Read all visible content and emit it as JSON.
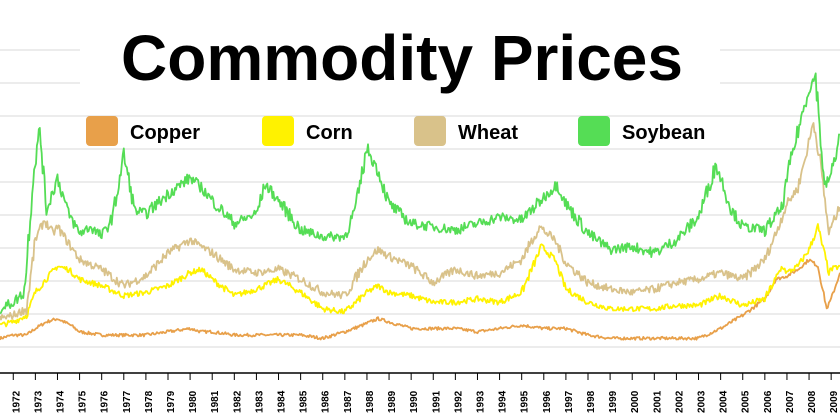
{
  "chart_data": {
    "type": "line",
    "title": "Commodity Prices",
    "xlabel": "",
    "ylabel": "",
    "xlim": [
      1971.4,
      2009.4
    ],
    "ylim": [
      0,
      100
    ],
    "grid": true,
    "legend_position": "top",
    "x_ticks": [
      "1972",
      "1973",
      "1974",
      "1975",
      "1976",
      "1977",
      "1978",
      "1979",
      "1980",
      "1981",
      "1982",
      "1983",
      "1984",
      "1985",
      "1986",
      "1987",
      "1988",
      "1989",
      "1990",
      "1991",
      "1992",
      "1993",
      "1994",
      "1995",
      "1996",
      "1997",
      "1998",
      "1999",
      "2000",
      "2001",
      "2002",
      "2003",
      "2004",
      "2005",
      "2006",
      "2007",
      "2008",
      "2009"
    ],
    "series": [
      {
        "name": "Copper",
        "color": "#E8A04A",
        "points": [
          [
            1971.4,
            6
          ],
          [
            1972,
            7
          ],
          [
            1972.6,
            7
          ],
          [
            1973,
            9
          ],
          [
            1973.5,
            11
          ],
          [
            1974,
            12
          ],
          [
            1974.6,
            10
          ],
          [
            1975,
            8
          ],
          [
            1976,
            7
          ],
          [
            1977,
            7
          ],
          [
            1978,
            7
          ],
          [
            1979,
            8
          ],
          [
            1980,
            9
          ],
          [
            1980.5,
            8
          ],
          [
            1981,
            8
          ],
          [
            1982,
            7
          ],
          [
            1983,
            7
          ],
          [
            1984,
            7
          ],
          [
            1985,
            7
          ],
          [
            1986,
            6
          ],
          [
            1987,
            8
          ],
          [
            1987.8,
            10
          ],
          [
            1988.5,
            12
          ],
          [
            1989,
            11
          ],
          [
            1990,
            9
          ],
          [
            1991,
            9
          ],
          [
            1992,
            9
          ],
          [
            1993,
            8
          ],
          [
            1994,
            9
          ],
          [
            1995,
            10
          ],
          [
            1996,
            9
          ],
          [
            1997,
            9
          ],
          [
            1998,
            7
          ],
          [
            1999,
            6
          ],
          [
            2000,
            6
          ],
          [
            2001,
            6
          ],
          [
            2002,
            6
          ],
          [
            2003,
            6
          ],
          [
            2004,
            9
          ],
          [
            2005,
            13
          ],
          [
            2006,
            18
          ],
          [
            2006.5,
            24
          ],
          [
            2007,
            25
          ],
          [
            2007.5,
            27
          ],
          [
            2008,
            30
          ],
          [
            2008.4,
            28
          ],
          [
            2008.8,
            15
          ],
          [
            2009,
            18
          ],
          [
            2009.4,
            26
          ]
        ]
      },
      {
        "name": "Corn",
        "color": "#FFF200",
        "points": [
          [
            1971.4,
            10
          ],
          [
            1972,
            11
          ],
          [
            1972.6,
            13
          ],
          [
            1973,
            20
          ],
          [
            1973.6,
            25
          ],
          [
            1974,
            28
          ],
          [
            1974.5,
            27
          ],
          [
            1975,
            24
          ],
          [
            1976,
            22
          ],
          [
            1977,
            19
          ],
          [
            1978,
            20
          ],
          [
            1979,
            22
          ],
          [
            1980,
            26
          ],
          [
            1980.5,
            27
          ],
          [
            1981,
            24
          ],
          [
            1982,
            19
          ],
          [
            1983,
            21
          ],
          [
            1984,
            24
          ],
          [
            1985,
            20
          ],
          [
            1986,
            15
          ],
          [
            1987,
            14
          ],
          [
            1988,
            20
          ],
          [
            1988.5,
            22
          ],
          [
            1989,
            20
          ],
          [
            1990,
            19
          ],
          [
            1991,
            17
          ],
          [
            1992,
            17
          ],
          [
            1993,
            18
          ],
          [
            1994,
            17
          ],
          [
            1995,
            20
          ],
          [
            1995.9,
            34
          ],
          [
            1996.5,
            30
          ],
          [
            1997,
            21
          ],
          [
            1998,
            17
          ],
          [
            1999,
            15
          ],
          [
            2000,
            15
          ],
          [
            2001,
            15
          ],
          [
            2002,
            16
          ],
          [
            2003,
            16
          ],
          [
            2004,
            19
          ],
          [
            2005,
            16
          ],
          [
            2006,
            18
          ],
          [
            2006.8,
            28
          ],
          [
            2007,
            26
          ],
          [
            2007.5,
            28
          ],
          [
            2008,
            33
          ],
          [
            2008.4,
            40
          ],
          [
            2008.9,
            26
          ],
          [
            2009,
            27
          ],
          [
            2009.4,
            28
          ]
        ]
      },
      {
        "name": "Wheat",
        "color": "#D9C28A",
        "points": [
          [
            1971.4,
            12
          ],
          [
            1972,
            13
          ],
          [
            1972.6,
            15
          ],
          [
            1973,
            36
          ],
          [
            1973.4,
            42
          ],
          [
            1973.8,
            38
          ],
          [
            1974,
            40
          ],
          [
            1974.5,
            35
          ],
          [
            1975,
            30
          ],
          [
            1976,
            27
          ],
          [
            1977,
            22
          ],
          [
            1978,
            25
          ],
          [
            1979,
            32
          ],
          [
            1980,
            36
          ],
          [
            1980.5,
            34
          ],
          [
            1981,
            32
          ],
          [
            1982,
            27
          ],
          [
            1983,
            26
          ],
          [
            1984,
            27
          ],
          [
            1985,
            24
          ],
          [
            1986,
            20
          ],
          [
            1987,
            19
          ],
          [
            1988,
            30
          ],
          [
            1988.5,
            33
          ],
          [
            1989,
            31
          ],
          [
            1990,
            28
          ],
          [
            1991,
            23
          ],
          [
            1992,
            27
          ],
          [
            1993,
            25
          ],
          [
            1994,
            26
          ],
          [
            1995,
            30
          ],
          [
            1995.8,
            40
          ],
          [
            1996.5,
            36
          ],
          [
            1997,
            29
          ],
          [
            1998,
            23
          ],
          [
            1999,
            21
          ],
          [
            2000,
            20
          ],
          [
            2001,
            21
          ],
          [
            2002,
            23
          ],
          [
            2003,
            24
          ],
          [
            2004,
            26
          ],
          [
            2005,
            24
          ],
          [
            2006,
            30
          ],
          [
            2006.5,
            38
          ],
          [
            2007,
            47
          ],
          [
            2007.5,
            52
          ],
          [
            2007.9,
            63
          ],
          [
            2008.2,
            72
          ],
          [
            2008.5,
            60
          ],
          [
            2008.9,
            38
          ],
          [
            2009,
            40
          ],
          [
            2009.4,
            46
          ]
        ]
      },
      {
        "name": "Soybean",
        "color": "#55DD55",
        "points": [
          [
            1971.4,
            15
          ],
          [
            1972,
            17
          ],
          [
            1972.5,
            20
          ],
          [
            1972.9,
            55
          ],
          [
            1973.2,
            70
          ],
          [
            1973.5,
            45
          ],
          [
            1974,
            55
          ],
          [
            1974.5,
            44
          ],
          [
            1975,
            38
          ],
          [
            1975.5,
            40
          ],
          [
            1976,
            37
          ],
          [
            1976.5,
            43
          ],
          [
            1977,
            62
          ],
          [
            1977.5,
            45
          ],
          [
            1978,
            44
          ],
          [
            1979,
            50
          ],
          [
            1980,
            55
          ],
          [
            1980.5,
            52
          ],
          [
            1981,
            48
          ],
          [
            1982,
            41
          ],
          [
            1983,
            44
          ],
          [
            1983.4,
            53
          ],
          [
            1984,
            48
          ],
          [
            1985,
            39
          ],
          [
            1986,
            37
          ],
          [
            1987,
            37
          ],
          [
            1987.5,
            46
          ],
          [
            1988,
            64
          ],
          [
            1988.5,
            57
          ],
          [
            1989,
            47
          ],
          [
            1990,
            41
          ],
          [
            1991,
            40
          ],
          [
            1992,
            39
          ],
          [
            1993,
            41
          ],
          [
            1994,
            43
          ],
          [
            1995,
            42
          ],
          [
            1996,
            49
          ],
          [
            1996.6,
            53
          ],
          [
            1997,
            47
          ],
          [
            1998,
            38
          ],
          [
            1999,
            33
          ],
          [
            2000,
            34
          ],
          [
            2001,
            32
          ],
          [
            2002,
            36
          ],
          [
            2003,
            43
          ],
          [
            2003.8,
            59
          ],
          [
            2004.5,
            45
          ],
          [
            2005,
            40
          ],
          [
            2006,
            39
          ],
          [
            2006.8,
            46
          ],
          [
            2007,
            55
          ],
          [
            2007.6,
            72
          ],
          [
            2008,
            82
          ],
          [
            2008.3,
            86
          ],
          [
            2008.7,
            52
          ],
          [
            2009,
            56
          ],
          [
            2009.4,
            68
          ]
        ]
      }
    ]
  }
}
